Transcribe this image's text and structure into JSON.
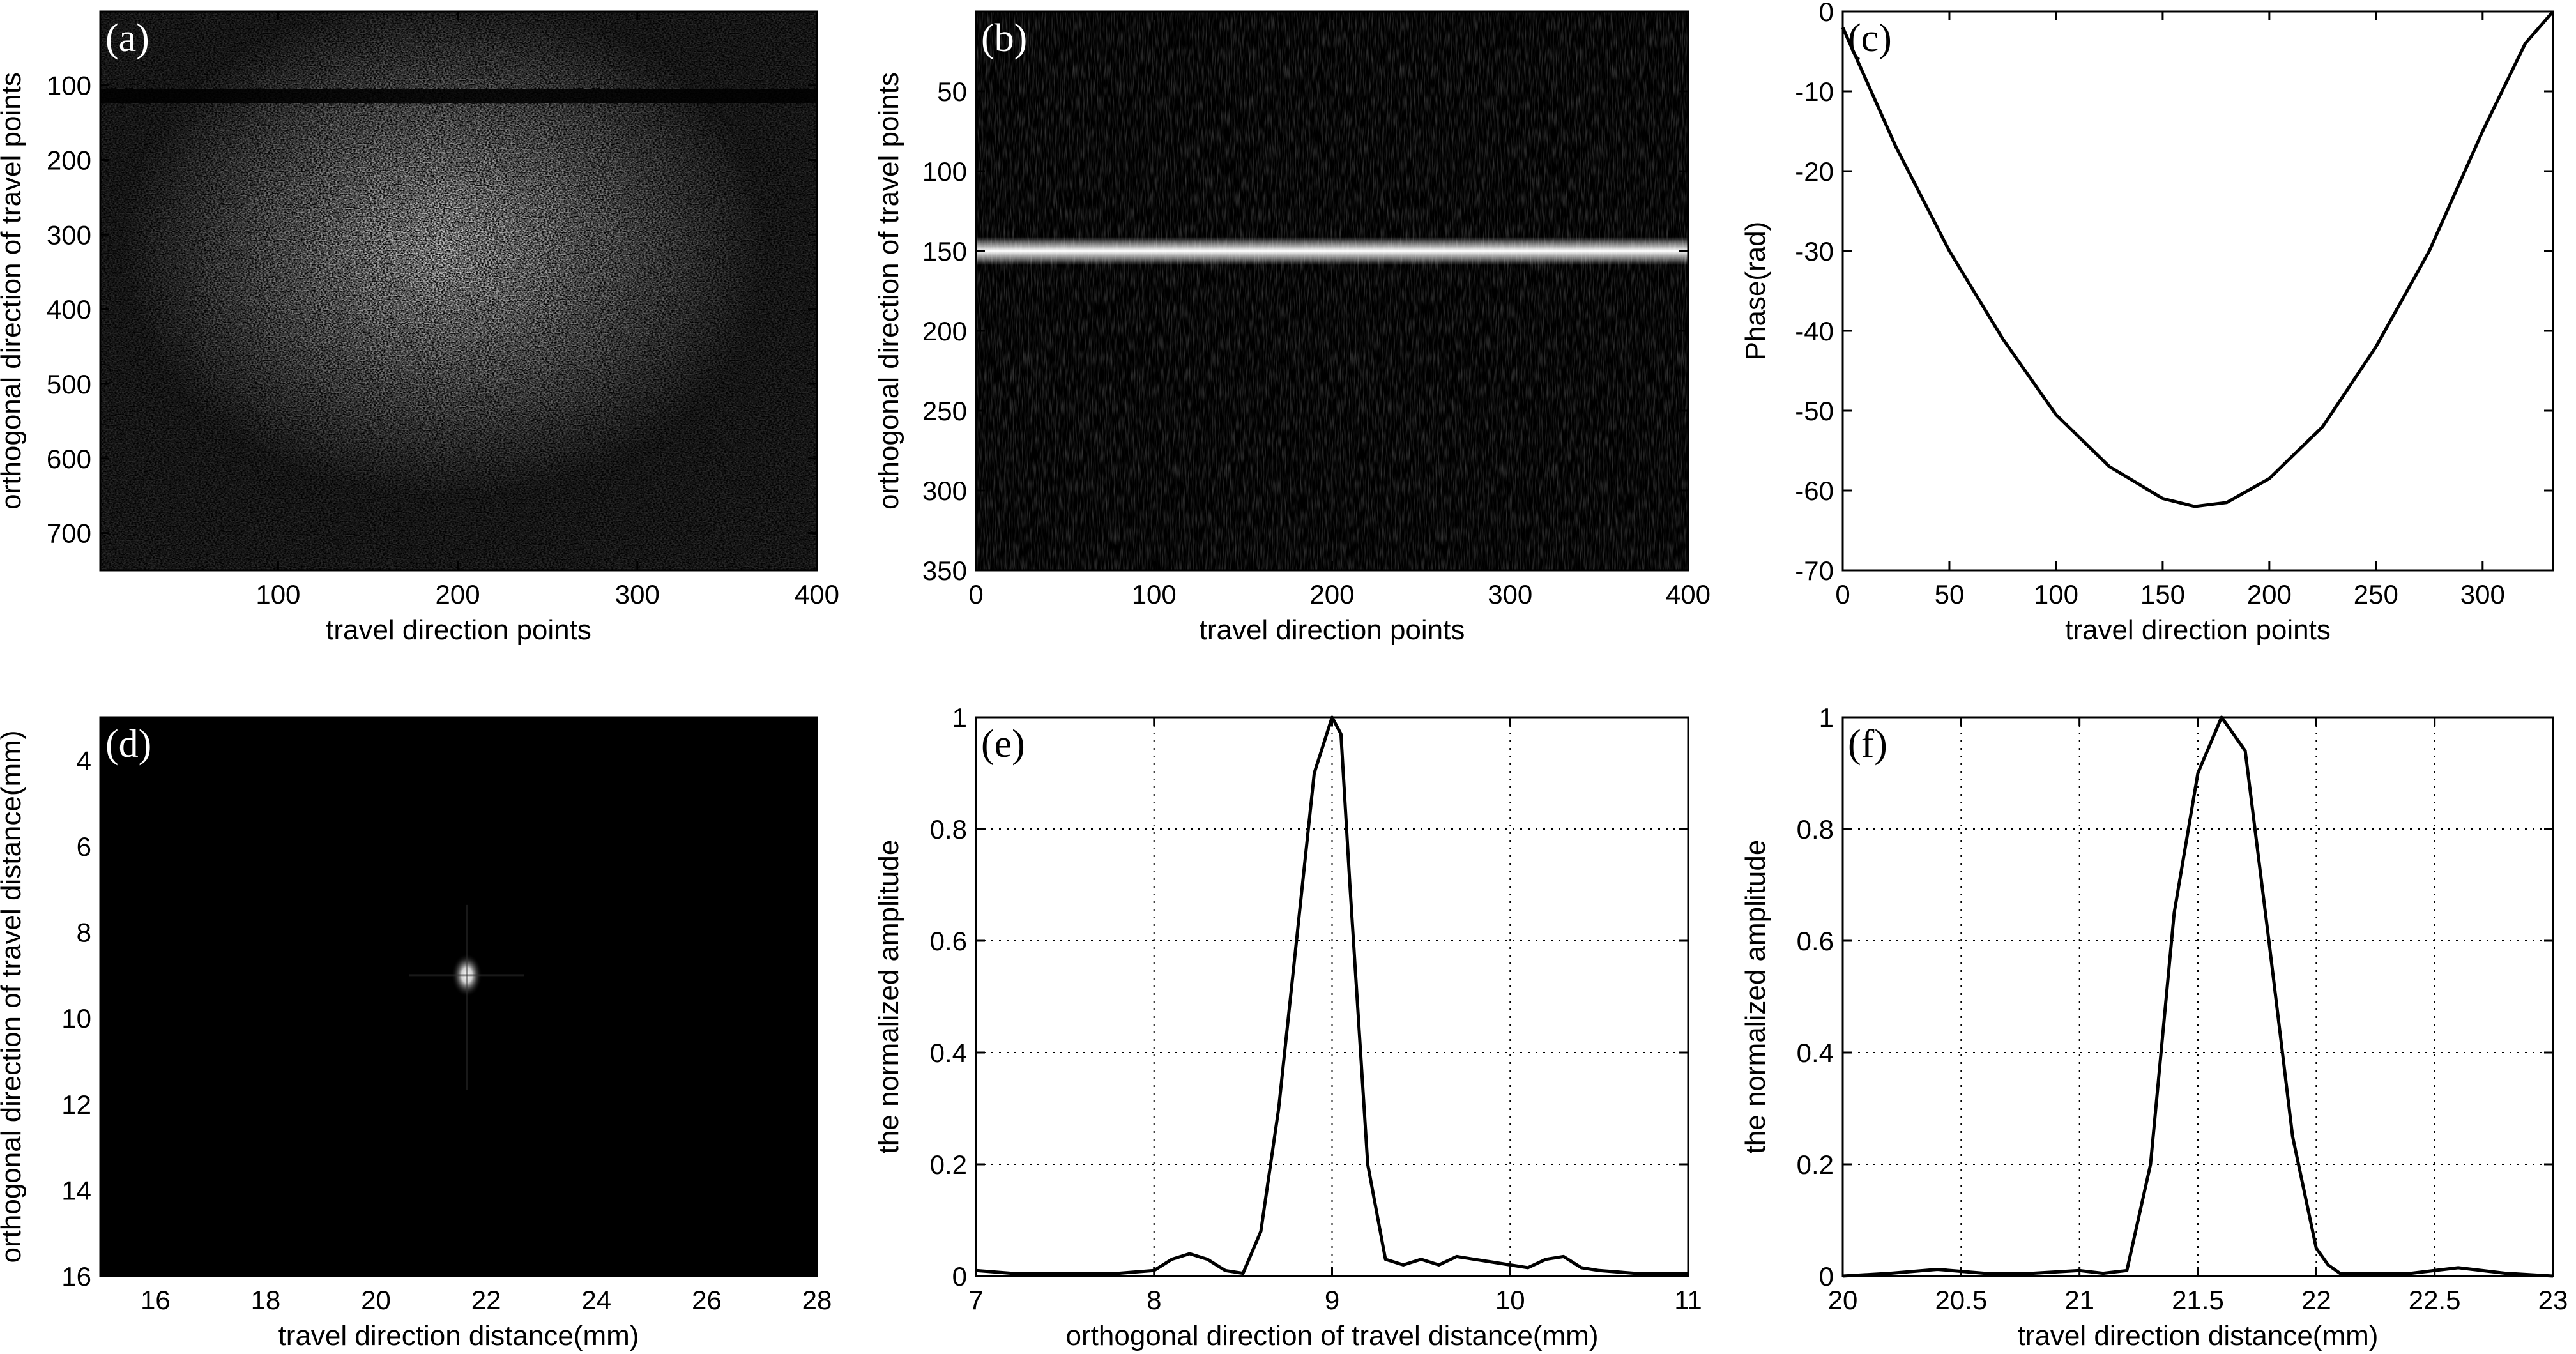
{
  "chart_data": [
    {
      "id": "a",
      "type": "heatmap",
      "panel_label": "(a)",
      "xlabel": "travel direction points",
      "ylabel": "orthogonal direction of travel points",
      "xlim": [
        1,
        400
      ],
      "ylim": [
        1,
        750
      ],
      "y_reversed": true,
      "xticks": [
        100,
        200,
        300,
        400
      ],
      "yticks": [
        100,
        200,
        300,
        400,
        500,
        600,
        700
      ],
      "colormap": "gray",
      "description_values": {
        "bright_region_center": [
          220,
          350
        ],
        "dark_band_row": 115
      }
    },
    {
      "id": "b",
      "type": "heatmap",
      "panel_label": "(b)",
      "xlabel": "travel direction points",
      "ylabel": "orthogonal direction of travel points",
      "xlim": [
        0,
        400
      ],
      "ylim": [
        0,
        350
      ],
      "y_reversed": true,
      "xticks": [
        0,
        100,
        200,
        300,
        400
      ],
      "yticks": [
        50,
        100,
        150,
        200,
        250,
        300,
        350
      ],
      "colormap": "gray",
      "description_values": {
        "bright_line_row": 150
      }
    },
    {
      "id": "c",
      "type": "line",
      "panel_label": "(c)",
      "xlabel": "travel direction points",
      "ylabel": "Phase(rad)",
      "xlim": [
        0,
        333
      ],
      "ylim": [
        -70,
        0
      ],
      "xticks": [
        0,
        50,
        100,
        150,
        200,
        250,
        300
      ],
      "yticks": [
        0,
        -10,
        -20,
        -30,
        -40,
        -50,
        -60,
        -70
      ],
      "x": [
        0,
        25,
        50,
        75,
        100,
        125,
        150,
        165,
        180,
        200,
        225,
        250,
        275,
        300,
        320,
        333
      ],
      "y": [
        -2,
        -17,
        -30,
        -41,
        -50.5,
        -57,
        -61,
        -62,
        -61.5,
        -58.5,
        -52,
        -42,
        -30,
        -15,
        -4,
        0
      ]
    },
    {
      "id": "d",
      "type": "heatmap",
      "panel_label": "(d)",
      "xlabel": "travel direction distance(mm)",
      "ylabel": "orthogonal direction of travel distance(mm)",
      "xlim": [
        15,
        28
      ],
      "ylim": [
        3,
        16
      ],
      "y_reversed": true,
      "xticks": [
        16,
        18,
        20,
        22,
        24,
        26,
        28
      ],
      "yticks": [
        4,
        6,
        8,
        10,
        12,
        14,
        16
      ],
      "colormap": "gray",
      "description_values": {
        "point_target": [
          21.65,
          9.0
        ]
      }
    },
    {
      "id": "e",
      "type": "line",
      "panel_label": "(e)",
      "xlabel": "orthogonal direction of travel distance(mm)",
      "ylabel": "the normalized amplitude",
      "xlim": [
        7,
        11
      ],
      "ylim": [
        0,
        1
      ],
      "grid": true,
      "xticks": [
        7,
        8,
        9,
        10,
        11
      ],
      "yticks": [
        0,
        0.2,
        0.4,
        0.6,
        0.8,
        1
      ],
      "x": [
        7.0,
        7.2,
        7.5,
        7.8,
        8.0,
        8.1,
        8.2,
        8.3,
        8.4,
        8.5,
        8.6,
        8.7,
        8.8,
        8.9,
        9.0,
        9.05,
        9.1,
        9.2,
        9.3,
        9.4,
        9.5,
        9.6,
        9.7,
        9.8,
        9.9,
        10.0,
        10.1,
        10.2,
        10.3,
        10.4,
        10.5,
        10.7,
        11.0
      ],
      "y": [
        0.01,
        0.005,
        0.005,
        0.005,
        0.01,
        0.03,
        0.04,
        0.03,
        0.01,
        0.005,
        0.08,
        0.3,
        0.6,
        0.9,
        1.0,
        0.97,
        0.7,
        0.2,
        0.03,
        0.02,
        0.03,
        0.02,
        0.035,
        0.03,
        0.025,
        0.02,
        0.015,
        0.03,
        0.035,
        0.015,
        0.01,
        0.005,
        0.005
      ]
    },
    {
      "id": "f",
      "type": "line",
      "panel_label": "(f)",
      "xlabel": "travel direction distance(mm)",
      "ylabel": "the normalized amplitude",
      "xlim": [
        20,
        23
      ],
      "ylim": [
        0,
        1
      ],
      "grid": true,
      "xticks": [
        20,
        20.5,
        21,
        21.5,
        22,
        22.5,
        23
      ],
      "yticks": [
        0,
        0.2,
        0.4,
        0.6,
        0.8,
        1
      ],
      "x": [
        20.0,
        20.2,
        20.4,
        20.6,
        20.8,
        21.0,
        21.1,
        21.2,
        21.3,
        21.4,
        21.5,
        21.6,
        21.7,
        21.8,
        21.9,
        22.0,
        22.05,
        22.1,
        22.2,
        22.4,
        22.6,
        22.8,
        23.0
      ],
      "y": [
        0.0,
        0.005,
        0.012,
        0.005,
        0.005,
        0.01,
        0.005,
        0.01,
        0.2,
        0.65,
        0.9,
        1.0,
        0.94,
        0.6,
        0.25,
        0.05,
        0.02,
        0.005,
        0.005,
        0.005,
        0.015,
        0.005,
        0.0
      ]
    }
  ]
}
